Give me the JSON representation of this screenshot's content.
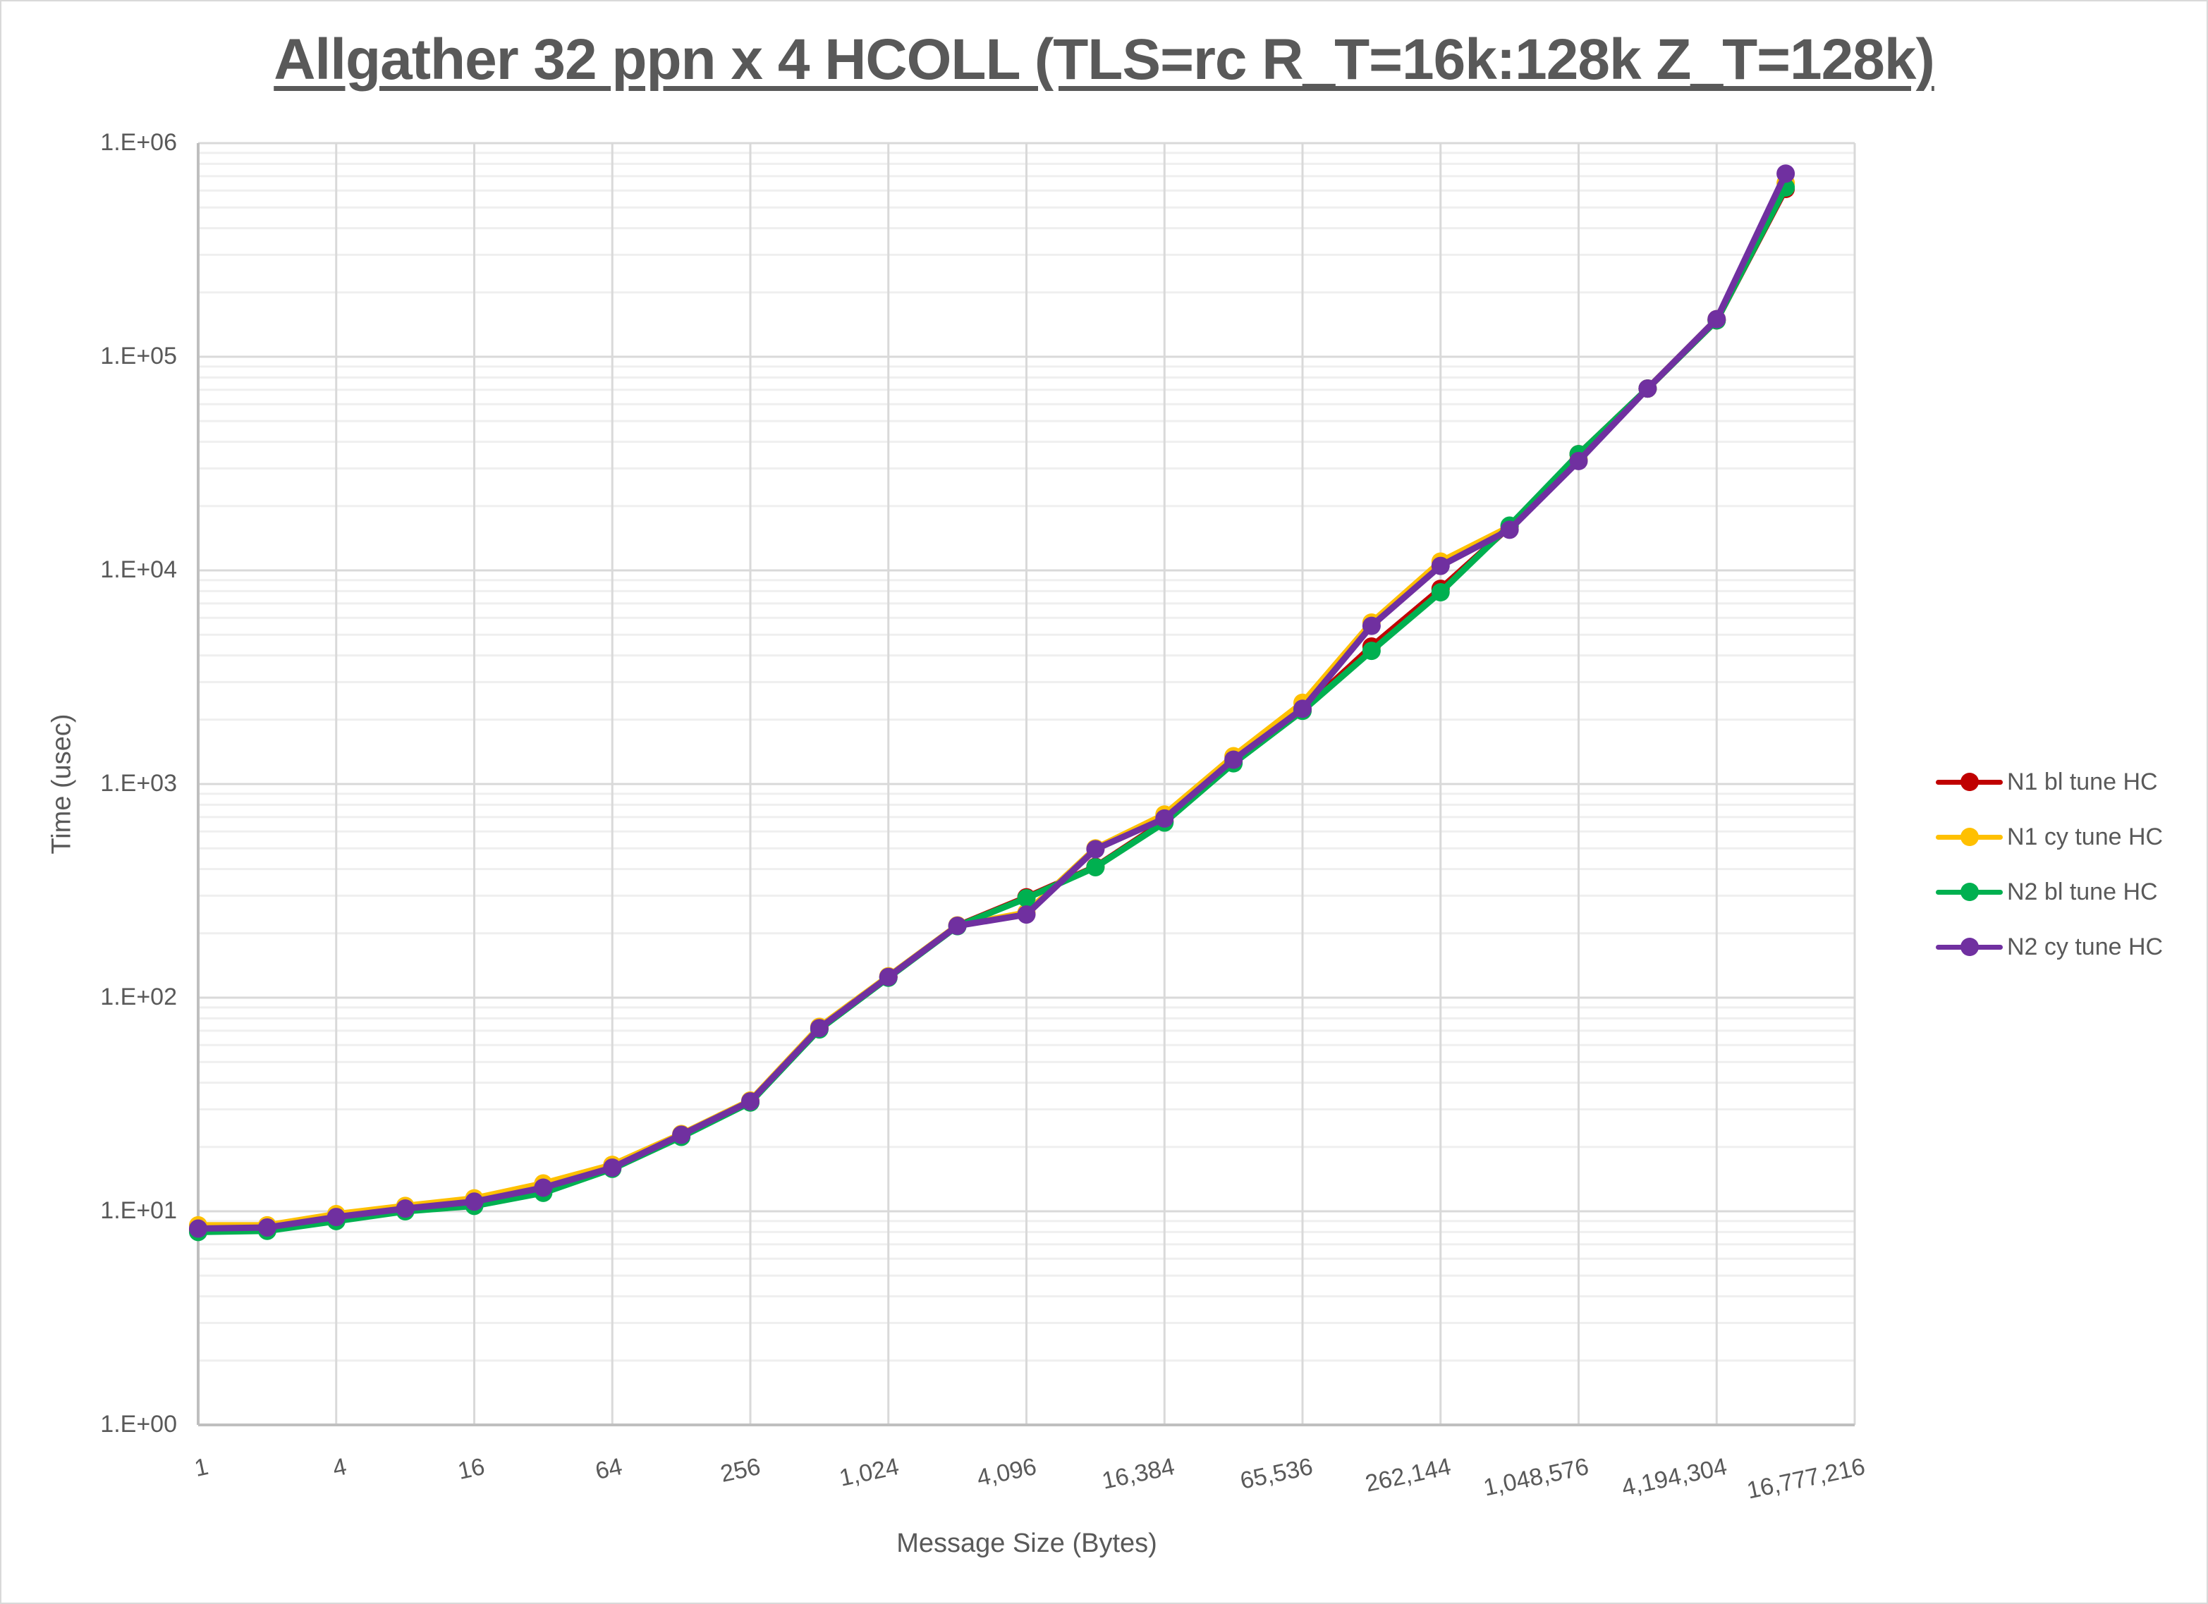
{
  "chart": {
    "title": "Allgather 32 ppn x 4 HCOLL (TLS=rc R_T=16k:128k Z_T=128k)",
    "xlabel": "Message Size (Bytes)",
    "ylabel": "Time (usec)",
    "y_ticks": [
      "1.E+00",
      "1.E+01",
      "1.E+02",
      "1.E+03",
      "1.E+04",
      "1.E+05",
      "1.E+06"
    ],
    "x_ticks": [
      "1",
      "4",
      "16",
      "64",
      "256",
      "1,024",
      "4,096",
      "16,384",
      "65,536",
      "262,144",
      "1,048,576",
      "4,194,304",
      "16,777,216"
    ],
    "legend": [
      {
        "label": "N1 bl tune HC",
        "color": "#c00000"
      },
      {
        "label": "N1 cy tune HC",
        "color": "#ffc000"
      },
      {
        "label": "N2 bl tune HC",
        "color": "#00b050"
      },
      {
        "label": "N2 cy tune HC",
        "color": "#7030a0"
      }
    ]
  },
  "chart_data": {
    "type": "line",
    "title": "Allgather 32 ppn x 4 HCOLL (TLS=rc R_T=16k:128k Z_T=128k)",
    "xlabel": "Message Size (Bytes)",
    "ylabel": "Time (usec)",
    "xscale": "log2",
    "yscale": "log10",
    "ylim": [
      1,
      1000000
    ],
    "xlim": [
      1,
      16777216
    ],
    "grid": true,
    "legend_position": "right",
    "x": [
      1,
      2,
      4,
      8,
      16,
      32,
      64,
      128,
      256,
      512,
      1024,
      2048,
      4096,
      8192,
      16384,
      32768,
      65536,
      131072,
      262144,
      524288,
      1048576,
      2097152,
      4194304,
      8388608
    ],
    "series": [
      {
        "name": "N1 bl tune HC",
        "color": "#c00000",
        "values": [
          8.2,
          8.3,
          9.2,
          10.2,
          10.9,
          12.6,
          16.0,
          22.5,
          32.5,
          72,
          125,
          217,
          295,
          410,
          670,
          1270,
          2220,
          4400,
          8200,
          16000,
          35000,
          71000,
          148000,
          610000
        ]
      },
      {
        "name": "N1 cy tune HC",
        "color": "#ffc000",
        "values": [
          8.6,
          8.6,
          9.7,
          10.6,
          11.5,
          13.5,
          16.5,
          23.0,
          33.0,
          73,
          126,
          218,
          250,
          500,
          720,
          1350,
          2400,
          5700,
          11000,
          16000,
          33000,
          71000,
          150000,
          650000
        ]
      },
      {
        "name": "N2 bl tune HC",
        "color": "#00b050",
        "values": [
          8.0,
          8.1,
          9.0,
          10.0,
          10.6,
          12.2,
          15.8,
          22.3,
          32.3,
          71,
          124,
          216,
          292,
          408,
          660,
          1250,
          2200,
          4200,
          7900,
          16200,
          35000,
          71000,
          148000,
          620000
        ]
      },
      {
        "name": "N2 cy tune HC",
        "color": "#7030a0",
        "values": [
          8.3,
          8.4,
          9.4,
          10.3,
          11.1,
          12.9,
          16.0,
          22.8,
          32.7,
          72,
          125,
          217,
          245,
          495,
          690,
          1300,
          2250,
          5500,
          10500,
          15500,
          32500,
          71000,
          150000,
          720000
        ]
      }
    ]
  }
}
